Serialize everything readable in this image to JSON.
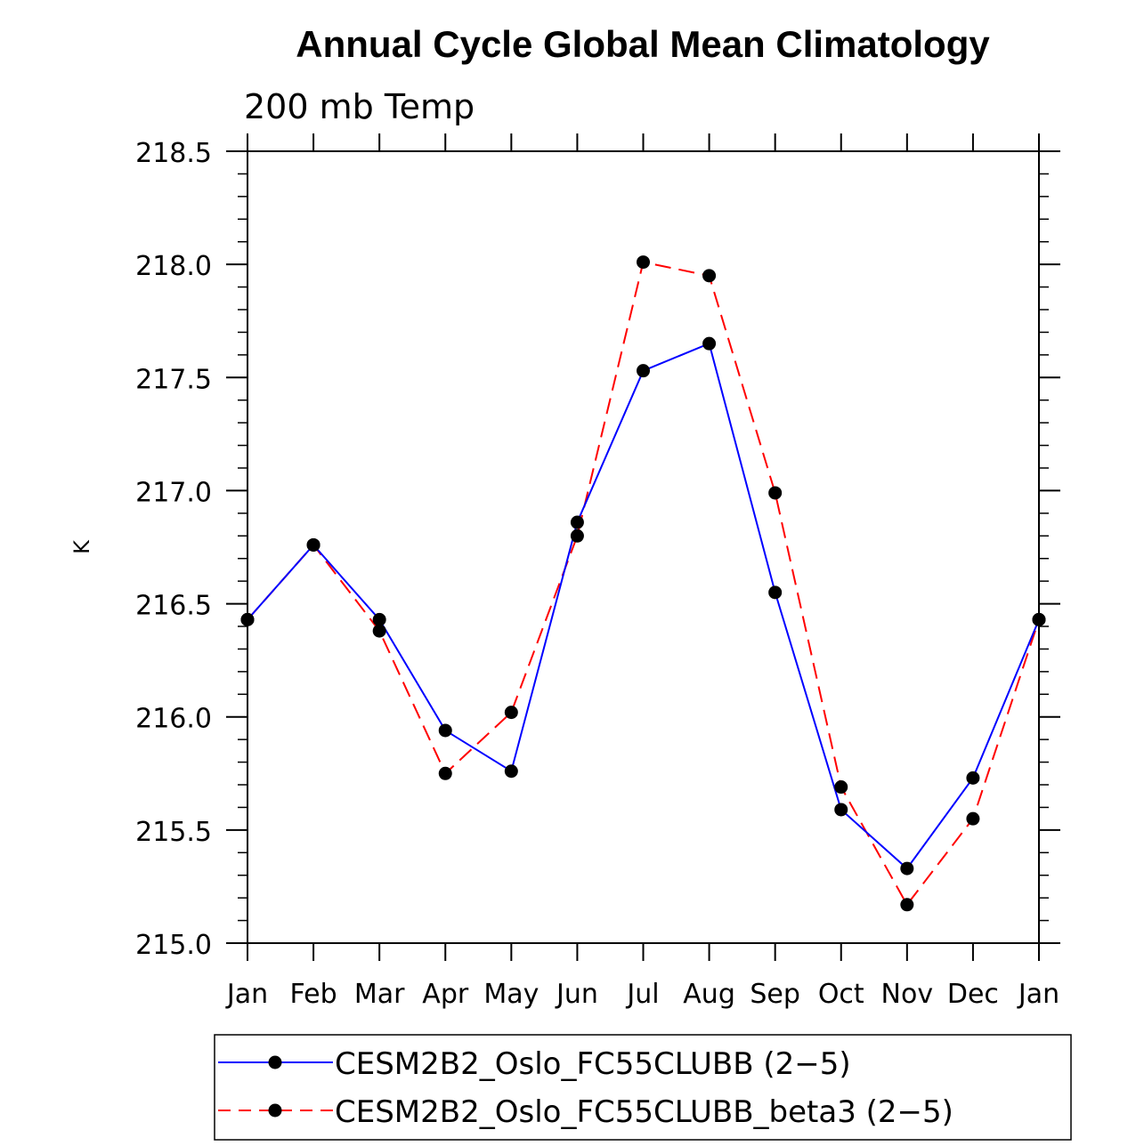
{
  "chart_data": {
    "type": "line",
    "title": "Annual Cycle Global Mean Climatology",
    "subtitle": "200 mb Temp",
    "xlabel": "",
    "ylabel": "K",
    "categories": [
      "Jan",
      "Feb",
      "Mar",
      "Apr",
      "May",
      "Jun",
      "Jul",
      "Aug",
      "Sep",
      "Oct",
      "Nov",
      "Dec",
      "Jan"
    ],
    "ylim": [
      215.0,
      218.5
    ],
    "yticks": [
      "215.0",
      "215.5",
      "216.0",
      "216.5",
      "217.0",
      "217.5",
      "218.0",
      "218.5"
    ],
    "grid": false,
    "legend_position": "bottom",
    "series": [
      {
        "name": "CESM2B2_Oslo_FC55CLUBB (2−5)",
        "color": "#0000ff",
        "line_style": "solid",
        "marker": "filled-circle",
        "values": [
          216.43,
          216.76,
          216.43,
          215.94,
          215.76,
          216.86,
          217.53,
          217.65,
          216.55,
          215.59,
          215.33,
          215.73,
          216.43
        ]
      },
      {
        "name": "CESM2B2_Oslo_FC55CLUBB_beta3 (2−5)",
        "color": "#ff0000",
        "line_style": "dashed",
        "marker": "filled-circle",
        "values": [
          216.43,
          216.76,
          216.38,
          215.75,
          216.02,
          216.8,
          218.01,
          217.95,
          216.99,
          215.69,
          215.17,
          215.55,
          216.43
        ]
      }
    ]
  }
}
